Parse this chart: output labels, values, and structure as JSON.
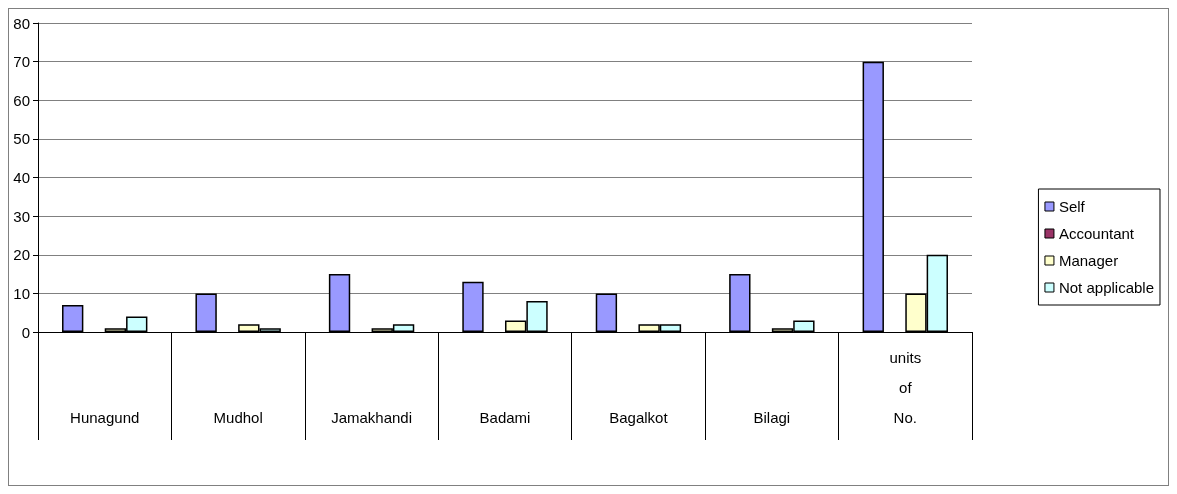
{
  "chart_data": {
    "type": "bar",
    "categories": [
      "Hunagund",
      "Mudhol",
      "Jamakhandi",
      "Badami",
      "Bagalkot",
      "Bilagi",
      "units of No."
    ],
    "series": [
      {
        "name": "Self",
        "color": "#9999ff",
        "values": [
          7,
          10,
          15,
          13,
          10,
          15,
          70
        ]
      },
      {
        "name": "Accountant",
        "color": "#993366",
        "values": [
          null,
          null,
          null,
          null,
          null,
          null,
          null
        ]
      },
      {
        "name": "Manager",
        "color": "#ffffcc",
        "values": [
          1,
          2,
          1,
          3,
          2,
          1,
          10
        ]
      },
      {
        "name": "Not applicable",
        "color": "#ccffff",
        "values": [
          4,
          1,
          2,
          8,
          2,
          3,
          20
        ]
      }
    ],
    "ylim": [
      0,
      80
    ],
    "yticks": [
      0,
      10,
      20,
      30,
      40,
      50,
      60,
      70,
      80
    ],
    "grid": "y",
    "legend": "right"
  }
}
